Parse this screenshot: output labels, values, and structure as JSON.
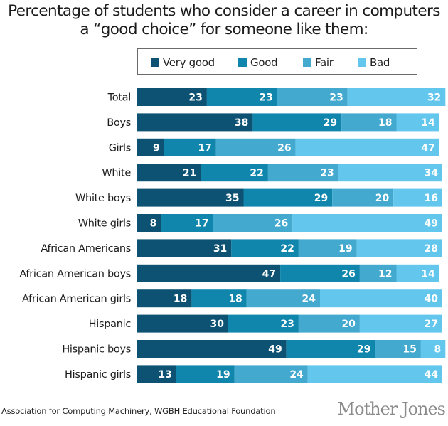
{
  "chart_data": {
    "type": "bar",
    "orientation": "horizontal",
    "stacked": true,
    "title": "Percentage of students who consider a career in computers a “good choice” for someone like them:",
    "title_lines": [
      "Percentage of students who consider a career in computers",
      "a “good choice” for someone like them:"
    ],
    "xlabel": "",
    "ylabel": "",
    "xlim": [
      0,
      100
    ],
    "grid": false,
    "legend_position": "top",
    "categories": [
      "Total",
      "Boys",
      "Girls",
      "White",
      "White boys",
      "White girls",
      "African Americans",
      "African American boys",
      "African American girls",
      "Hispanic",
      "Hispanic boys",
      "Hispanic girls"
    ],
    "series": [
      {
        "name": "Very good",
        "color": "#0d5173",
        "values": [
          23,
          38,
          9,
          21,
          35,
          8,
          31,
          47,
          18,
          30,
          49,
          13
        ]
      },
      {
        "name": "Good",
        "color": "#1186ad",
        "values": [
          23,
          29,
          17,
          22,
          29,
          17,
          22,
          26,
          18,
          23,
          29,
          19
        ]
      },
      {
        "name": "Fair",
        "color": "#44a9cf",
        "values": [
          23,
          18,
          26,
          23,
          20,
          26,
          19,
          12,
          24,
          20,
          15,
          24
        ]
      },
      {
        "name": "Bad",
        "color": "#62c6ed",
        "values": [
          32,
          14,
          47,
          34,
          16,
          49,
          28,
          14,
          40,
          27,
          8,
          44
        ]
      }
    ]
  },
  "footer": {
    "source": "Association for Computing Machinery, WGBH Educational Foundation",
    "brand": "Mother Jones"
  }
}
